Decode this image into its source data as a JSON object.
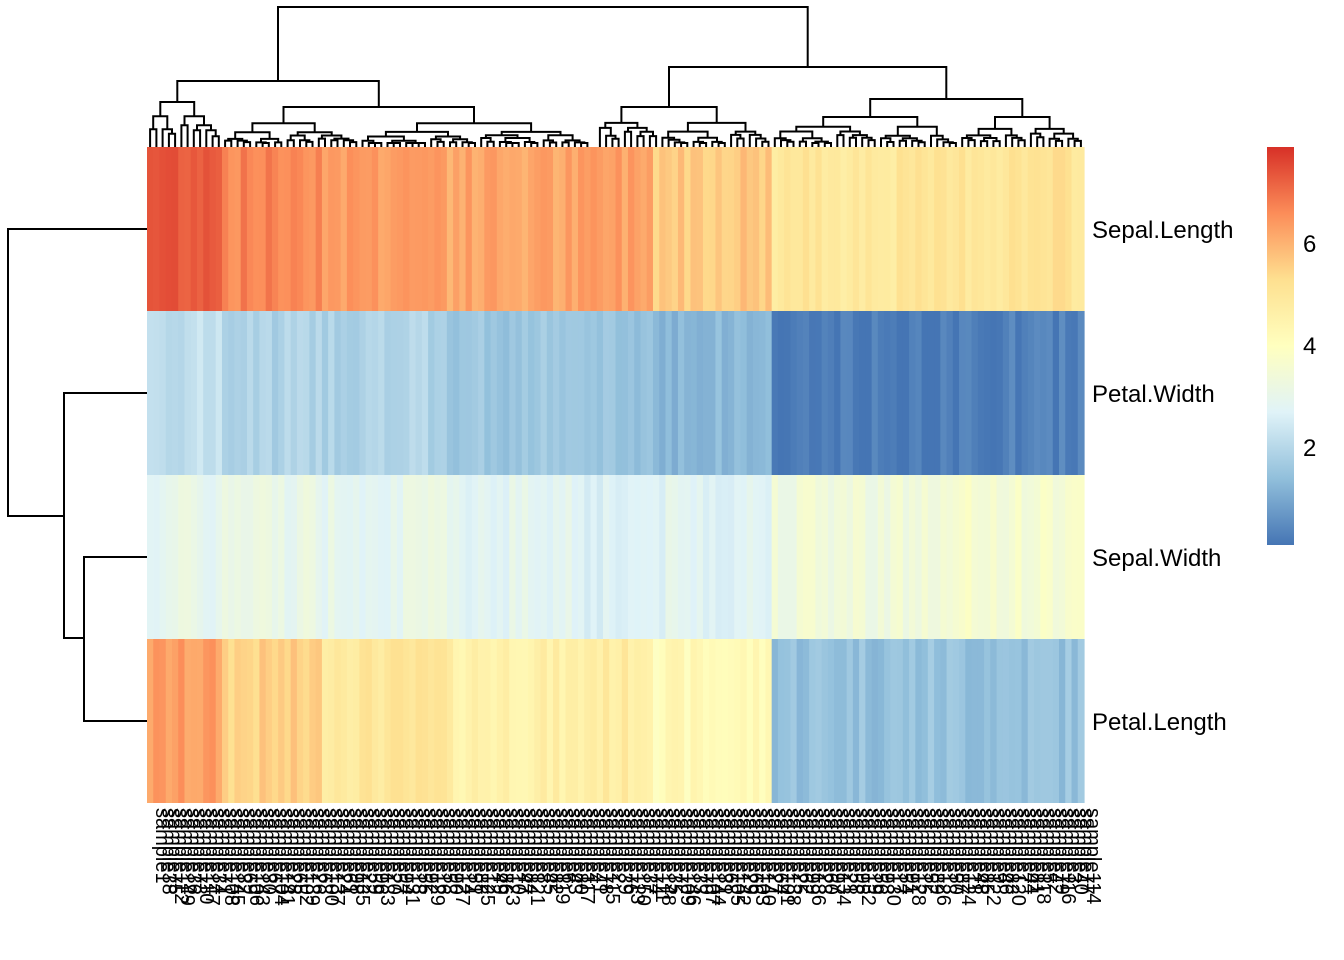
{
  "chart_data": {
    "type": "heatmap",
    "title": "",
    "row_labels": [
      "Sepal.Length",
      "Petal.Width",
      "Sepal.Width",
      "Petal.Length"
    ],
    "row_dendrogram": true,
    "column_dendrogram": true,
    "column_label_prefix": "sample",
    "n_columns": 150,
    "legend": {
      "position": "right",
      "ticks": [
        2,
        4,
        6
      ],
      "range": [
        0.1,
        7.9
      ],
      "colors": [
        "#4575B4",
        "#91BFDB",
        "#E0F3F8",
        "#FFFFBF",
        "#FEE090",
        "#FC8D59",
        "#D73027"
      ]
    },
    "column_groups": [
      {
        "count": 12,
        "values": [
          7.4,
          2.2,
          3.0,
          6.3
        ]
      },
      {
        "count": 16,
        "values": [
          6.7,
          1.9,
          3.1,
          5.5
        ]
      },
      {
        "count": 20,
        "values": [
          6.4,
          1.9,
          3.0,
          5.0
        ]
      },
      {
        "count": 22,
        "values": [
          6.2,
          1.6,
          2.9,
          4.6
        ]
      },
      {
        "count": 11,
        "values": [
          6.3,
          1.5,
          2.7,
          4.8
        ]
      },
      {
        "count": 19,
        "values": [
          5.7,
          1.3,
          2.8,
          4.2
        ]
      },
      {
        "count": 30,
        "values": [
          5.0,
          0.2,
          3.4,
          1.5
        ]
      },
      {
        "count": 20,
        "values": [
          5.1,
          0.3,
          3.6,
          1.5
        ]
      }
    ]
  }
}
